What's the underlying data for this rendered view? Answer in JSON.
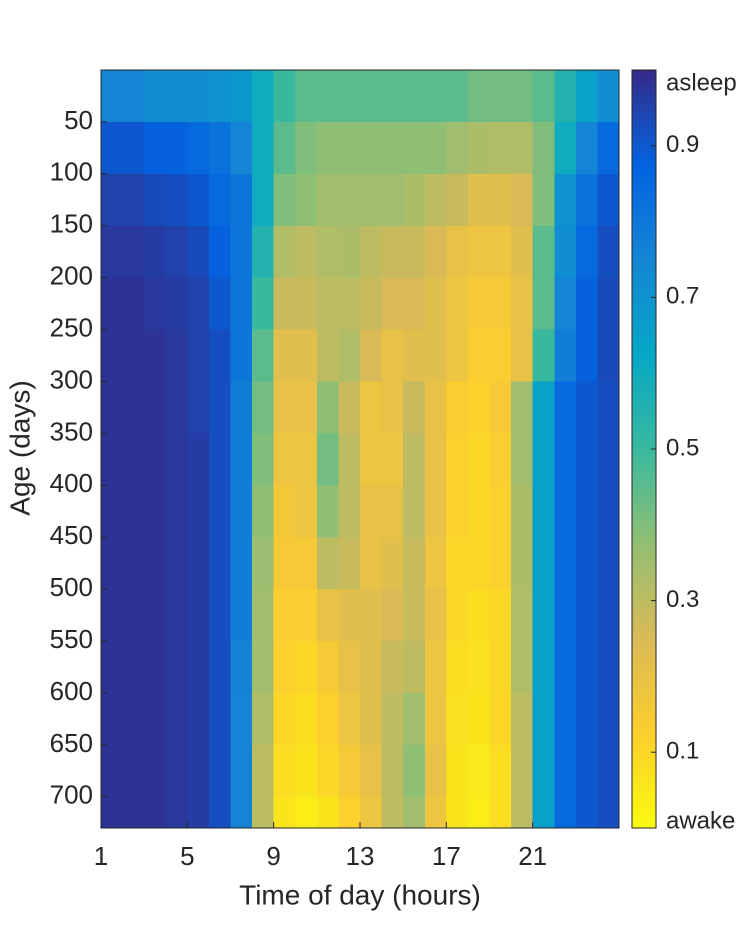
{
  "chart_data": {
    "type": "heatmap",
    "xlabel": "Time of day (hours)",
    "ylabel": "Age (days)",
    "xbins": [
      1,
      2,
      3,
      4,
      5,
      6,
      7,
      8,
      9,
      10,
      11,
      12,
      13,
      14,
      15,
      16,
      17,
      18,
      19,
      20,
      21,
      22,
      23,
      24,
      25
    ],
    "ybins": [
      0,
      50,
      100,
      150,
      200,
      250,
      300,
      350,
      400,
      450,
      500,
      550,
      600,
      650,
      700,
      730
    ],
    "xlim": [
      1,
      25
    ],
    "ylim": [
      0,
      730
    ],
    "y_reversed": true,
    "xticks": [
      1,
      5,
      9,
      13,
      17,
      21
    ],
    "yticks": [
      50,
      100,
      150,
      200,
      250,
      300,
      350,
      400,
      450,
      500,
      550,
      600,
      650,
      700
    ],
    "clim": [
      0,
      1
    ],
    "cticks": [
      {
        "value": 0,
        "label": "awake"
      },
      0.1,
      0.3,
      0.5,
      0.7,
      0.9,
      {
        "value": 1,
        "label": "asleep"
      }
    ],
    "colormap": [
      "#f9fb0e",
      "#fcce2e",
      "#d9ba56",
      "#92bf73",
      "#38b99e",
      "#06a7c6",
      "#1485d4",
      "#0363e1",
      "#352a87"
    ],
    "values": [
      [
        0.75,
        0.75,
        0.72,
        0.72,
        0.72,
        0.7,
        0.68,
        0.6,
        0.5,
        0.45,
        0.45,
        0.45,
        0.45,
        0.45,
        0.45,
        0.45,
        0.45,
        0.42,
        0.42,
        0.42,
        0.45,
        0.55,
        0.65,
        0.72
      ],
      [
        0.9,
        0.9,
        0.88,
        0.88,
        0.85,
        0.82,
        0.75,
        0.6,
        0.45,
        0.4,
        0.38,
        0.38,
        0.38,
        0.38,
        0.38,
        0.38,
        0.35,
        0.33,
        0.32,
        0.32,
        0.4,
        0.6,
        0.75,
        0.85
      ],
      [
        0.95,
        0.95,
        0.93,
        0.92,
        0.9,
        0.85,
        0.8,
        0.6,
        0.4,
        0.38,
        0.35,
        0.35,
        0.35,
        0.35,
        0.33,
        0.3,
        0.28,
        0.22,
        0.22,
        0.25,
        0.4,
        0.7,
        0.82,
        0.9
      ],
      [
        0.97,
        0.97,
        0.96,
        0.95,
        0.93,
        0.88,
        0.8,
        0.55,
        0.32,
        0.3,
        0.32,
        0.33,
        0.3,
        0.28,
        0.28,
        0.25,
        0.2,
        0.18,
        0.18,
        0.22,
        0.45,
        0.72,
        0.85,
        0.92
      ],
      [
        0.98,
        0.98,
        0.97,
        0.96,
        0.95,
        0.9,
        0.8,
        0.5,
        0.28,
        0.28,
        0.3,
        0.3,
        0.28,
        0.25,
        0.25,
        0.22,
        0.18,
        0.15,
        0.15,
        0.2,
        0.45,
        0.75,
        0.88,
        0.93
      ],
      [
        0.98,
        0.98,
        0.98,
        0.97,
        0.95,
        0.92,
        0.8,
        0.45,
        0.22,
        0.22,
        0.3,
        0.32,
        0.25,
        0.2,
        0.22,
        0.22,
        0.18,
        0.13,
        0.13,
        0.2,
        0.5,
        0.78,
        0.88,
        0.93
      ],
      [
        0.98,
        0.98,
        0.98,
        0.97,
        0.95,
        0.92,
        0.78,
        0.42,
        0.2,
        0.2,
        0.38,
        0.28,
        0.18,
        0.2,
        0.28,
        0.2,
        0.13,
        0.12,
        0.15,
        0.35,
        0.65,
        0.85,
        0.9,
        0.92
      ],
      [
        0.98,
        0.98,
        0.98,
        0.97,
        0.96,
        0.92,
        0.78,
        0.4,
        0.18,
        0.18,
        0.42,
        0.3,
        0.18,
        0.18,
        0.3,
        0.2,
        0.12,
        0.1,
        0.13,
        0.35,
        0.65,
        0.85,
        0.9,
        0.92
      ],
      [
        0.98,
        0.98,
        0.98,
        0.97,
        0.96,
        0.92,
        0.78,
        0.38,
        0.16,
        0.18,
        0.38,
        0.3,
        0.2,
        0.2,
        0.3,
        0.2,
        0.12,
        0.1,
        0.12,
        0.33,
        0.65,
        0.85,
        0.9,
        0.92
      ],
      [
        0.98,
        0.98,
        0.98,
        0.97,
        0.96,
        0.92,
        0.78,
        0.36,
        0.15,
        0.15,
        0.3,
        0.28,
        0.2,
        0.22,
        0.28,
        0.18,
        0.1,
        0.1,
        0.12,
        0.33,
        0.65,
        0.85,
        0.9,
        0.92
      ],
      [
        0.98,
        0.98,
        0.98,
        0.97,
        0.96,
        0.92,
        0.78,
        0.35,
        0.13,
        0.13,
        0.2,
        0.22,
        0.22,
        0.25,
        0.28,
        0.2,
        0.1,
        0.08,
        0.1,
        0.32,
        0.65,
        0.85,
        0.9,
        0.92
      ],
      [
        0.98,
        0.98,
        0.98,
        0.97,
        0.96,
        0.92,
        0.76,
        0.35,
        0.12,
        0.1,
        0.15,
        0.2,
        0.22,
        0.28,
        0.3,
        0.18,
        0.08,
        0.07,
        0.1,
        0.32,
        0.65,
        0.85,
        0.9,
        0.92
      ],
      [
        0.98,
        0.98,
        0.98,
        0.97,
        0.96,
        0.92,
        0.75,
        0.32,
        0.1,
        0.08,
        0.12,
        0.18,
        0.22,
        0.3,
        0.35,
        0.18,
        0.07,
        0.06,
        0.1,
        0.3,
        0.65,
        0.85,
        0.9,
        0.92
      ],
      [
        0.98,
        0.98,
        0.98,
        0.97,
        0.96,
        0.92,
        0.75,
        0.3,
        0.08,
        0.06,
        0.1,
        0.15,
        0.2,
        0.3,
        0.38,
        0.2,
        0.06,
        0.05,
        0.08,
        0.3,
        0.65,
        0.85,
        0.9,
        0.92
      ],
      [
        0.98,
        0.98,
        0.98,
        0.97,
        0.96,
        0.92,
        0.75,
        0.3,
        0.06,
        0.04,
        0.06,
        0.12,
        0.18,
        0.3,
        0.35,
        0.18,
        0.06,
        0.04,
        0.08,
        0.3,
        0.65,
        0.85,
        0.9,
        0.92
      ]
    ]
  }
}
